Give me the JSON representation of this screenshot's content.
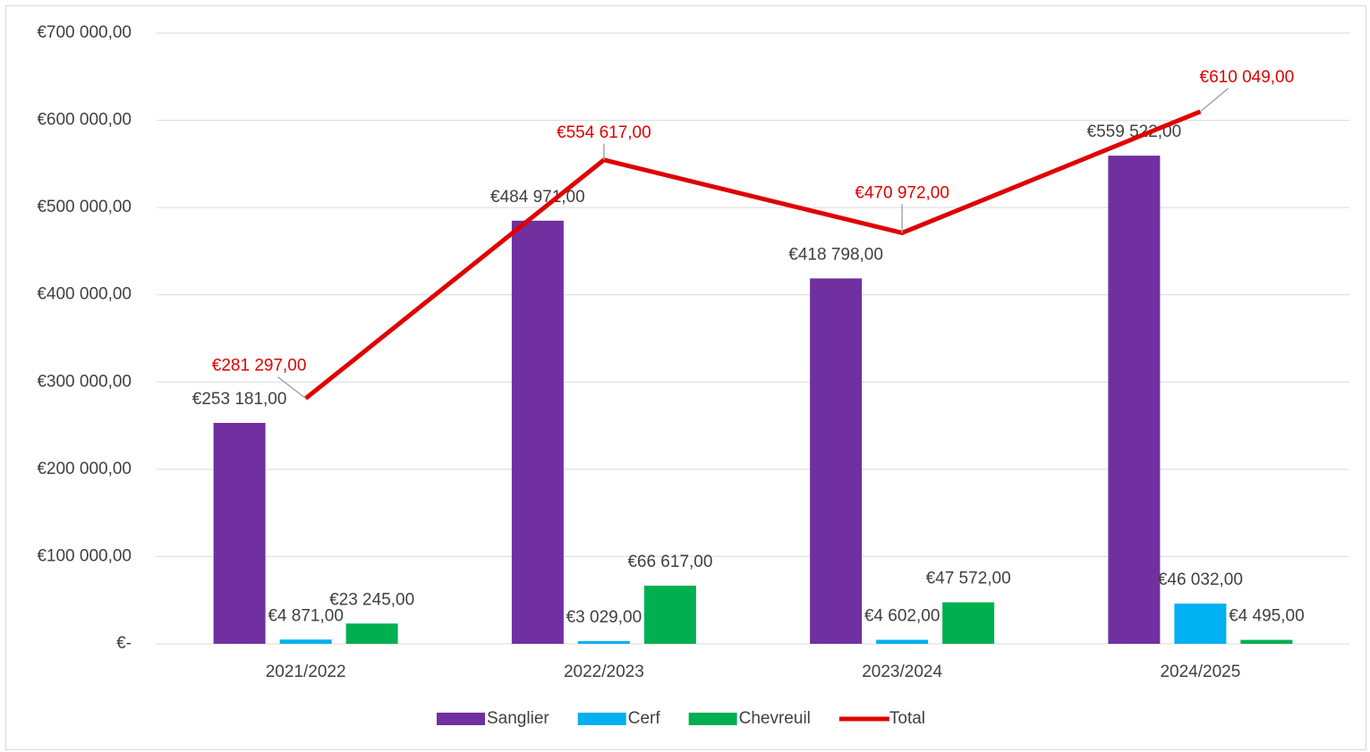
{
  "chart_data": {
    "type": "bar",
    "categories": [
      "2021/2022",
      "2022/2023",
      "2023/2024",
      "2024/2025"
    ],
    "series": [
      {
        "name": "Sanglier",
        "color": "#7030a0",
        "values": [
          253181,
          484971,
          418798,
          559522
        ],
        "value_labels": [
          "€253 181,00",
          "€484 971,00",
          "€418 798,00",
          "€559 522,00"
        ]
      },
      {
        "name": "Cerf",
        "color": "#00b0f0",
        "values": [
          4871,
          3029,
          4602,
          46032
        ],
        "value_labels": [
          "€4 871,00",
          "€3 029,00",
          "€4 602,00",
          "€46 032,00"
        ]
      },
      {
        "name": "Chevreuil",
        "color": "#00b050",
        "values": [
          23245,
          66617,
          47572,
          4495
        ],
        "value_labels": [
          "€23 245,00",
          "€66 617,00",
          "€47 572,00",
          "€4 495,00"
        ]
      },
      {
        "name": "Total",
        "color": "#e00000",
        "type": "line",
        "values": [
          281297,
          554617,
          470972,
          610049
        ],
        "value_labels": [
          "€281 297,00",
          "€554 617,00",
          "€470 972,00",
          "€610 049,00"
        ]
      }
    ],
    "ylim": [
      0,
      700000
    ],
    "yticks": [
      {
        "value": 0,
        "label": "€-"
      },
      {
        "value": 100000,
        "label": "€100 000,00"
      },
      {
        "value": 200000,
        "label": "€200 000,00"
      },
      {
        "value": 300000,
        "label": "€300 000,00"
      },
      {
        "value": 400000,
        "label": "€400 000,00"
      },
      {
        "value": 500000,
        "label": "€500 000,00"
      },
      {
        "value": 600000,
        "label": "€600 000,00"
      },
      {
        "value": 700000,
        "label": "€700 000,00"
      }
    ],
    "grid": true,
    "legend": "bottom"
  }
}
